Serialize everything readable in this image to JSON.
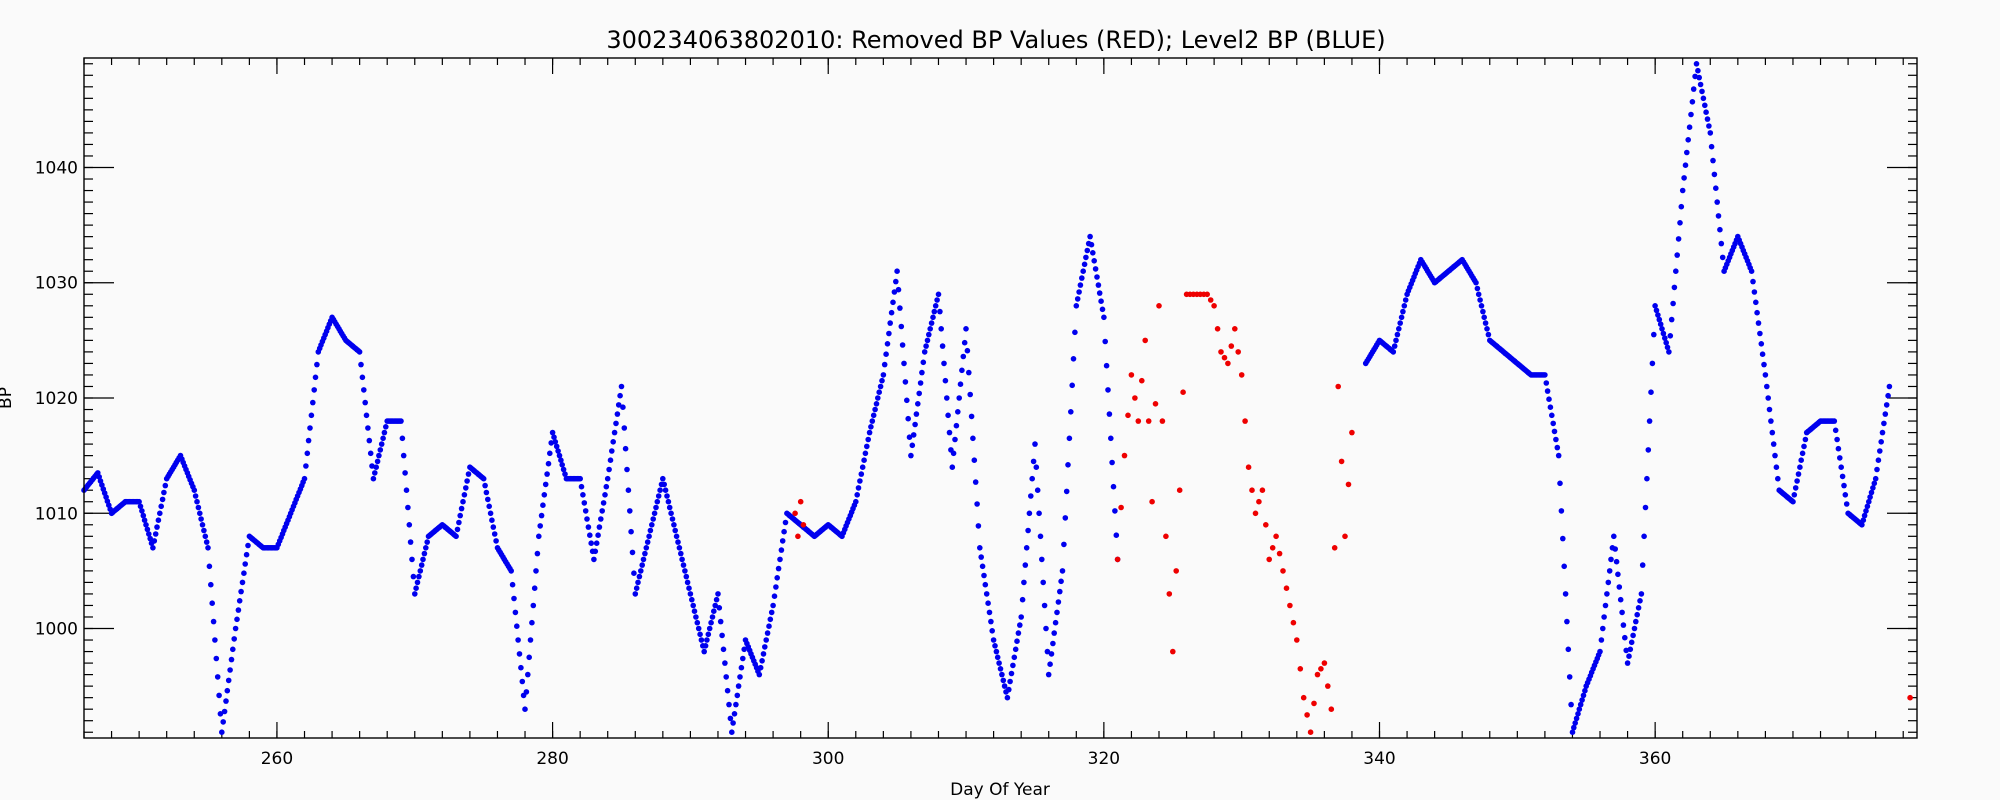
{
  "chart_data": {
    "type": "scatter",
    "title": "300234063802010: Removed BP Values (RED); Level2 BP (BLUE)",
    "xlabel": "Day Of Year",
    "ylabel": "BP",
    "xlim": [
      246,
      379
    ],
    "ylim": [
      990.5,
      1049.5
    ],
    "x_ticks": [
      260,
      280,
      300,
      320,
      340,
      360
    ],
    "y_ticks": [
      1000,
      1010,
      1020,
      1030,
      1040
    ],
    "x_minor_step": 2,
    "y_minor_step": 1,
    "grid": false,
    "colors": {
      "level2": "#0000ee",
      "removed": "#ee0000",
      "background": "#fafafa"
    },
    "series": [
      {
        "name": "Level2 BP (BLUE)",
        "color": "#0000ee",
        "x": [
          246,
          247,
          248,
          249,
          250,
          251,
          252,
          253,
          254,
          255,
          256,
          257,
          258,
          259,
          260,
          261,
          262,
          263,
          264,
          265,
          266,
          267,
          268,
          269,
          270,
          271,
          272,
          273,
          274,
          275,
          276,
          277,
          278,
          279,
          280,
          281,
          282,
          283,
          284,
          285,
          286,
          287,
          288,
          289,
          290,
          291,
          292,
          293,
          294,
          295,
          296,
          297,
          298,
          299,
          300,
          301,
          302,
          303,
          304,
          305,
          306,
          307,
          308,
          309,
          310,
          311,
          312,
          313,
          314,
          315,
          316,
          317,
          318,
          319,
          320,
          321,
          339,
          340,
          341,
          342,
          343,
          344,
          345,
          346,
          347,
          348,
          349,
          350,
          351,
          352,
          353,
          354,
          355,
          356,
          357,
          358,
          359,
          360,
          361,
          362,
          363,
          364,
          365,
          366,
          367,
          368,
          369,
          370,
          371,
          372,
          373,
          374,
          375,
          376,
          377
        ],
        "y": [
          1012,
          1013.5,
          1010,
          1011,
          1011,
          1007,
          1013,
          1015,
          1012,
          1007,
          991,
          1000,
          1008,
          1007,
          1007,
          1010,
          1013,
          1024,
          1027,
          1025,
          1024,
          1013,
          1018,
          1018,
          1003,
          1008,
          1009,
          1008,
          1014,
          1013,
          1007,
          1005,
          993,
          1008,
          1017,
          1013,
          1013,
          1006,
          1013,
          1021,
          1003,
          1008,
          1013,
          1008,
          1003,
          998,
          1003,
          991,
          999,
          996,
          1002,
          1010,
          1009,
          1008,
          1009,
          1008,
          1011,
          1017,
          1022,
          1031,
          1015,
          1024,
          1029,
          1014,
          1026,
          1007,
          999,
          994,
          1001,
          1016,
          996,
          1005,
          1028,
          1034,
          1027,
          1006,
          1023,
          1025,
          1024,
          1029,
          1032,
          1030,
          1031,
          1032,
          1030,
          1025,
          1024,
          1023,
          1022,
          1022,
          1015,
          991,
          995,
          998,
          1008,
          997,
          1003,
          1028,
          1024,
          1038,
          1049,
          1043,
          1031,
          1034,
          1031,
          1022,
          1012,
          1011,
          1017,
          1018,
          1018,
          1010,
          1009,
          1013,
          1021
        ]
      },
      {
        "name": "Removed BP Values (RED)",
        "color": "#ee0000",
        "x": [
          297.6,
          297.8,
          298,
          298.2,
          321,
          321.5,
          322,
          322.5,
          323,
          323.5,
          324,
          324.5,
          325,
          325.5,
          326,
          326.5,
          327,
          327.5,
          328,
          328.5,
          329,
          329.5,
          330,
          330.5,
          331,
          331.5,
          332,
          332.5,
          333,
          333.5,
          334,
          334.5,
          335,
          335.5,
          336,
          336.5,
          337,
          337.5,
          338,
          378.5
        ],
        "y": [
          1010,
          1008,
          1011,
          1009,
          1006,
          1015,
          1022,
          1018,
          1025,
          1011,
          1028,
          1008,
          998,
          1012,
          1029,
          1029,
          1029,
          1029,
          1028,
          1024,
          1023,
          1026,
          1022,
          1014,
          1010,
          1012,
          1006,
          1008,
          1005,
          1002,
          999,
          994,
          991,
          996,
          997,
          993,
          1021,
          1008,
          1017,
          994
        ]
      }
    ]
  }
}
